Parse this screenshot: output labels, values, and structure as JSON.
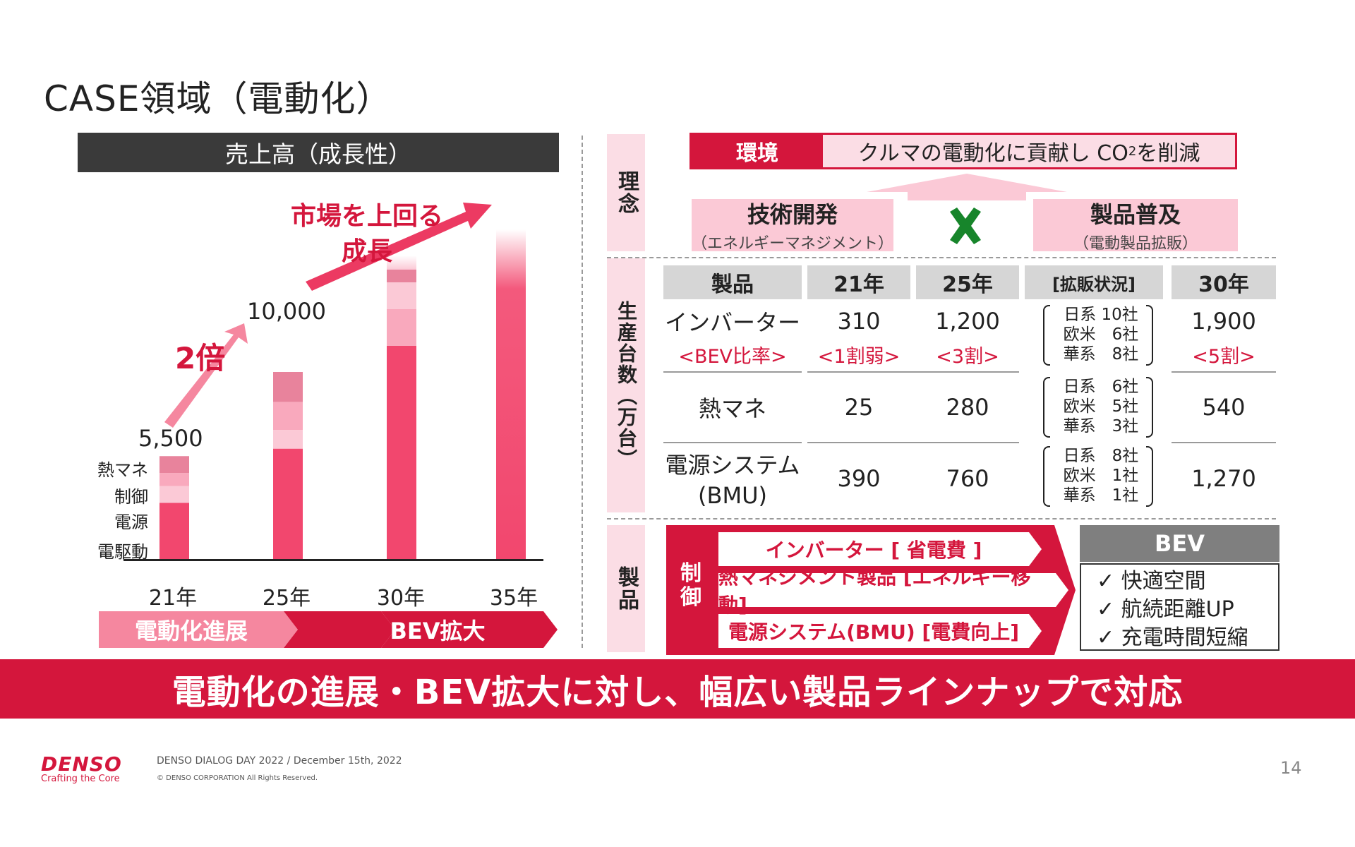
{
  "title": "CASE領域（電動化）",
  "left": {
    "header": "売上高（成長性）",
    "growth_text_1": "市場を上回る",
    "growth_text_2": "成長",
    "double_text": "2倍",
    "values": [
      "5,500",
      "10,000"
    ],
    "segments": [
      "熱マネ",
      "制御",
      "電源",
      "電駆動"
    ],
    "years": [
      "21年",
      "25年",
      "30年",
      "35年"
    ],
    "phase1": "電動化進展",
    "phase2": "BEV拡大"
  },
  "chart_data": {
    "type": "bar",
    "title": "売上高（成長性）",
    "categories": [
      "21年",
      "25年",
      "30年",
      "35年"
    ],
    "series": [
      {
        "name": "電駆動",
        "values": [
          3000,
          5900,
          null,
          null
        ]
      },
      {
        "name": "電源",
        "values": [
          900,
          1000,
          null,
          null
        ]
      },
      {
        "name": "制御",
        "values": [
          700,
          1500,
          null,
          null
        ]
      },
      {
        "name": "熱マネ",
        "values": [
          900,
          1600,
          null,
          null
        ]
      }
    ],
    "totals": [
      5500,
      10000,
      null,
      null
    ],
    "data_labels": [
      "5,500",
      "10,000",
      "",
      ""
    ],
    "annotations": [
      "2倍",
      "市場を上回る成長"
    ],
    "colors": {
      "main": "#f2476e",
      "light": "#f9a9bd",
      "pale": "#fbc9d6",
      "dark": "#e8839c"
    }
  },
  "right": {
    "band_riinen": "理念",
    "band_seisan": "生産台数（万台）",
    "band_seihin": "製品",
    "env_label": "環境",
    "env_text_pre": "クルマの電動化に貢献し CO",
    "env_text_sub": "2",
    "env_text_post": "を削減",
    "tech_main": "技術開発",
    "tech_sub": "（エネルギーマネジメント）",
    "prod_main": "製品普及",
    "prod_sub": "（電動製品拡販）",
    "table": {
      "headers": [
        "製品",
        "21年",
        "25年",
        "[拡販状況]",
        "30年"
      ],
      "rows": [
        {
          "name": "インバーター",
          "name_sub": "<BEV比率>",
          "y21": "310",
          "y21_sub": "<1割弱>",
          "y25": "1,200",
          "y25_sub": "<3割>",
          "status": [
            "日系 10社",
            "欧米　6社",
            "華系　8社"
          ],
          "y30": "1,900",
          "y30_sub": "<5割>"
        },
        {
          "name": "熱マネ",
          "y21": "25",
          "y25": "280",
          "status": [
            "日系　6社",
            "欧米　5社",
            "華系　3社"
          ],
          "y30": "540"
        },
        {
          "name": "電源システム",
          "name_sub": "(BMU)",
          "y21": "390",
          "y25": "760",
          "status": [
            "日系　8社",
            "欧米　1社",
            "華系　1社"
          ],
          "y30": "1,270"
        }
      ]
    },
    "ctrl_label": "制\n御",
    "products": [
      "インバーター [ 省電費 ]",
      "熱マネジメント製品 [エネルギー移動]",
      "電源システム(BMU) [電費向上]"
    ],
    "bev_head": "BEV",
    "bev_items": [
      "✓ 快適空間",
      "✓ 航続距離UP",
      "✓ 充電時間短縮"
    ]
  },
  "banner": "電動化の進展・BEV拡大に対し、幅広い製品ラインナップで対応",
  "footer": {
    "logo": "DENSO",
    "tagline": "Crafting the Core",
    "event": "DENSO DIALOG DAY 2022 / December 15th, 2022",
    "copyright": "© DENSO CORPORATION All Rights Reserved.",
    "page": "14"
  }
}
